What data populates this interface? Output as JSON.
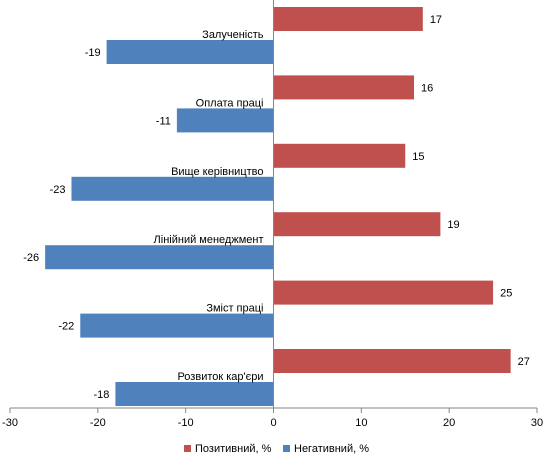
{
  "chart_data": {
    "type": "bar",
    "orientation": "horizontal",
    "categories": [
      "Залученість",
      "Оплата праці",
      "Вище керівництво",
      "Лінійний менеджмент",
      "Зміст праці",
      "Розвиток кар'єри"
    ],
    "series": [
      {
        "name": "Позитивний, %",
        "color": "#c0504d",
        "values": [
          17,
          16,
          15,
          19,
          25,
          27
        ]
      },
      {
        "name": "Негативний, %",
        "color": "#4f81bd",
        "values": [
          -19,
          -11,
          -23,
          -26,
          -22,
          -18
        ]
      }
    ],
    "xlim": [
      -30,
      30
    ],
    "xticks": [
      -30,
      -20,
      -10,
      0,
      10,
      20,
      30
    ],
    "xtick_labels": [
      "-30",
      "-20",
      "-10",
      "0",
      "10",
      "20",
      "30"
    ],
    "grid": false,
    "legend_position": "bottom"
  }
}
